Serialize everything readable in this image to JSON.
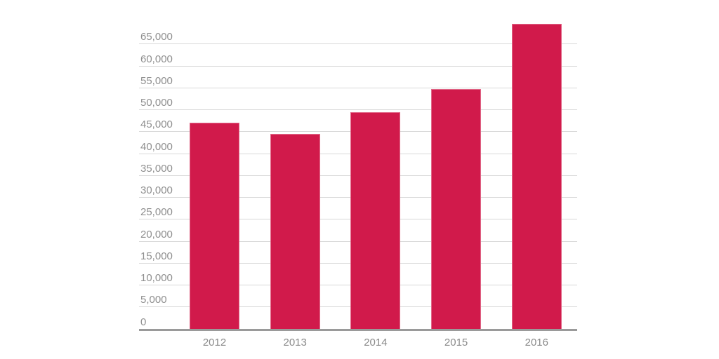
{
  "chart_data": {
    "type": "bar",
    "title": "",
    "xlabel": "",
    "ylabel": "",
    "categories": [
      "2012",
      "2013",
      "2014",
      "2015",
      "2016"
    ],
    "values": [
      47000,
      44400,
      49300,
      54700,
      69500
    ],
    "ylim": [
      0,
      70000
    ],
    "ytick_step": 5000,
    "ytick_values": [
      0,
      5000,
      10000,
      15000,
      20000,
      25000,
      30000,
      35000,
      40000,
      45000,
      50000,
      55000,
      60000,
      65000
    ],
    "ytick_labels": [
      "0",
      "5,000",
      "10,000",
      "15,000",
      "20,000",
      "25,000",
      "30,000",
      "35,000",
      "40,000",
      "45,000",
      "50,000",
      "55,000",
      "60,000",
      "65,000"
    ],
    "grid": "horizontal",
    "legend": "none",
    "colors": {
      "bar": "#d11a4b",
      "gridline": "#d8d8d8",
      "axis_line": "#9a9a9a",
      "ytick_label": "#8f8f8f",
      "xtick_label": "#8a8a8a",
      "background": "#ffffff"
    }
  }
}
